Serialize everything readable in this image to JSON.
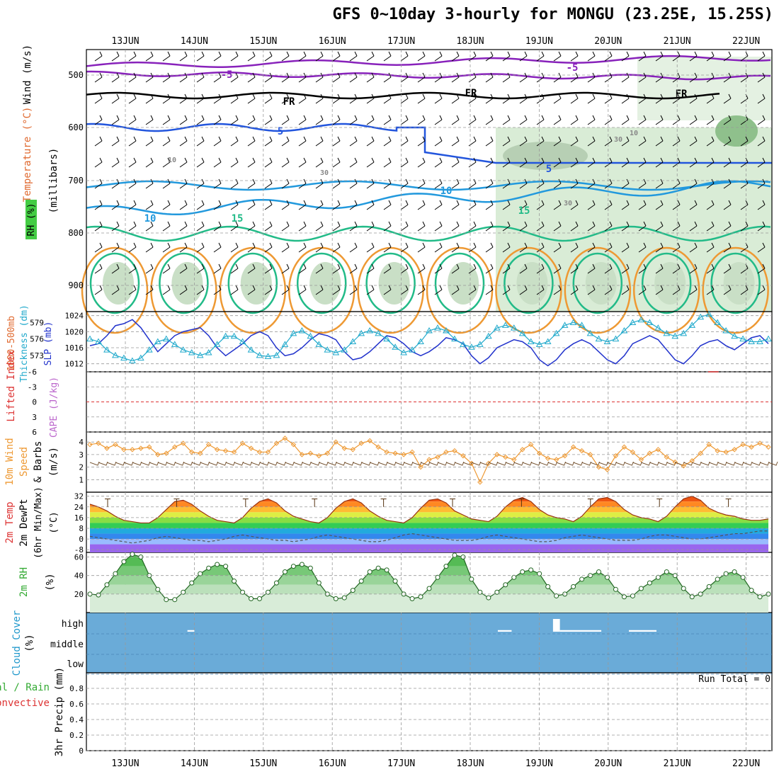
{
  "title": "GFS 0~10day 3-hourly for MONGU (23.25E, 15.25S)",
  "date_labels": [
    "13JUN",
    "14JUN",
    "15JUN",
    "16JUN",
    "17JUN",
    "18JUN",
    "19JUN",
    "20JUN",
    "21JUN",
    "22JUN"
  ],
  "run_total": "Run Total = 0",
  "colors": {
    "grid": "#999999",
    "wind_barb": "#000000",
    "temp_isotherm": "#2255dd",
    "freezing": "#000000",
    "rh_shading": "#9ccc9c",
    "slp": "#2233cc",
    "thickness": "#22aacc",
    "lifted_index": "#dd3333",
    "wind_speed": "#ee9933",
    "cloud": "#6aabd8",
    "rh2m": "#33aa33"
  },
  "panels": {
    "upper": {
      "labels": [
        "Wind (m/s)",
        "Temperature (°C)",
        "RH (%)"
      ],
      "axis_title": "(millibars)",
      "ticks": [
        "500",
        "600",
        "700",
        "800",
        "900"
      ],
      "contour_labels": [
        "-5",
        "-5",
        "FR",
        "FR",
        "FR",
        "5",
        "5",
        "10",
        "10",
        "15",
        "15",
        "10",
        "30",
        "30",
        "10",
        "30"
      ]
    },
    "slp": {
      "labels": [
        "1000-500mb",
        "Thickness (dm)",
        "SLP (mb)"
      ],
      "left_ticks": [
        "579",
        "576",
        "573"
      ],
      "right_ticks": [
        "1024",
        "1020",
        "1016",
        "1012"
      ]
    },
    "cape": {
      "labels": [
        "Lifted Index",
        "CAPE (J/kg)"
      ],
      "ticks": [
        "-6",
        "-3",
        "0",
        "3",
        "6"
      ]
    },
    "wind10m": {
      "labels": [
        "10m Wind",
        "Speed",
        "& Barbs",
        "(m/s)"
      ],
      "ticks": [
        "4",
        "3",
        "2",
        "1"
      ]
    },
    "temp2m": {
      "labels": [
        "2m Temp",
        "2m DewPt",
        "(6hr Min/Max)",
        "(°C)"
      ],
      "ticks": [
        "32",
        "24",
        "16",
        "8",
        "0",
        "-8"
      ]
    },
    "rh2m": {
      "labels": [
        "2m RH",
        "(%)"
      ],
      "ticks": [
        "60",
        "40",
        "20"
      ]
    },
    "cloud": {
      "labels": [
        "Cloud Cover",
        "(%)"
      ],
      "ticks": [
        "high",
        "middle",
        "low"
      ]
    },
    "precip": {
      "labels": [
        "Total / Rain",
        "Convective",
        "3hr Precip (mm)"
      ],
      "ticks": [
        "0.8",
        "0.6",
        "0.4",
        "0.2",
        "0"
      ]
    }
  },
  "chart_data": [
    {
      "type": "line",
      "panel": "slp",
      "x_unit": "days from 12JUN 12UTC (3-hourly)",
      "series": [
        {
          "name": "SLP (mb)",
          "axis": "right",
          "values": [
            1016.5,
            1017,
            1019,
            1021.5,
            1022,
            1023,
            1021,
            1018,
            1015,
            1017,
            1019,
            1020,
            1020.5,
            1021,
            1019,
            1016,
            1014,
            1015.5,
            1017,
            1019,
            1020,
            1019,
            1016,
            1014,
            1014.5,
            1016,
            1018,
            1019.5,
            1019,
            1018,
            1015,
            1013,
            1013.5,
            1015,
            1017,
            1019,
            1018.5,
            1017,
            1015,
            1014,
            1015,
            1016.5,
            1018.5,
            1018,
            1017,
            1014,
            1012,
            1013.5,
            1016,
            1017,
            1018,
            1017.5,
            1016,
            1013,
            1011.5,
            1013,
            1015.5,
            1017,
            1018,
            1017,
            1015,
            1013,
            1012,
            1014,
            1017,
            1018,
            1019,
            1018,
            1015.5,
            1013,
            1012,
            1014,
            1016.5,
            1017.5,
            1018,
            1016.5,
            1015.5,
            1017,
            1018.5,
            1019,
            1017
          ]
        },
        {
          "name": "1000-500mb Thickness (dm)",
          "axis": "left",
          "values": [
            576,
            575.5,
            574,
            573,
            572.5,
            572,
            572.5,
            574,
            575.5,
            576,
            575,
            574,
            573.5,
            573,
            573.5,
            575,
            576.5,
            576.5,
            575.5,
            574,
            573,
            572.8,
            573,
            575,
            577,
            577.5,
            576.5,
            575,
            574,
            573.5,
            574,
            575.5,
            577,
            577.5,
            577,
            576,
            574.5,
            573.5,
            574,
            575.5,
            577.5,
            578,
            577.5,
            576,
            575,
            574.5,
            575,
            576.5,
            578,
            578.5,
            578,
            577,
            575.5,
            575,
            575.5,
            577,
            578.5,
            579,
            578.5,
            577,
            576,
            575.5,
            576,
            577.5,
            579,
            579.5,
            579,
            578,
            577,
            576.5,
            577,
            578.5,
            580,
            580.5,
            579,
            577.5,
            576.5,
            576,
            575.5,
            575.5,
            576
          ]
        }
      ]
    },
    {
      "type": "line",
      "panel": "wind10m",
      "series": [
        {
          "name": "10m Wind Speed (m/s)",
          "values": [
            3.8,
            3.9,
            3.5,
            3.8,
            3.4,
            3.4,
            3.5,
            3.6,
            3.0,
            3.1,
            3.6,
            3.9,
            3.2,
            3.1,
            3.8,
            3.4,
            3.3,
            3.2,
            3.9,
            3.5,
            3.2,
            3.2,
            3.9,
            4.3,
            3.8,
            3.0,
            3.1,
            2.9,
            3.1,
            4.0,
            3.5,
            3.4,
            3.9,
            4.1,
            3.6,
            3.2,
            3.1,
            3.0,
            3.2,
            2.0,
            2.6,
            2.8,
            3.2,
            3.3,
            2.9,
            2.3,
            0.8,
            2.3,
            3.0,
            2.8,
            2.6,
            3.4,
            3.8,
            3.1,
            2.7,
            2.6,
            2.9,
            3.6,
            3.3,
            3.0,
            2.0,
            1.8,
            2.9,
            3.6,
            3.2,
            2.6,
            3.1,
            3.4,
            2.8,
            2.4,
            2.1,
            2.5,
            3.1,
            3.8,
            3.3,
            3.2,
            3.4,
            3.8,
            3.6,
            3.9,
            3.6
          ]
        }
      ]
    },
    {
      "type": "area",
      "panel": "temp2m",
      "series": [
        {
          "name": "2m Temp (°C)",
          "values": [
            26,
            24,
            21,
            17,
            14,
            13,
            12,
            12,
            16,
            22,
            28,
            29,
            26,
            21,
            17,
            14,
            13,
            12,
            16,
            23,
            28,
            30,
            27,
            21,
            17,
            15,
            13,
            12,
            16,
            23,
            28,
            30,
            27,
            21,
            17,
            14,
            13,
            12,
            16,
            23,
            29,
            30,
            27,
            21,
            18,
            15,
            14,
            13,
            17,
            24,
            29,
            31,
            28,
            22,
            18,
            16,
            15,
            13,
            17,
            24,
            30,
            31,
            28,
            22,
            18,
            16,
            15,
            13,
            17,
            24,
            30,
            32,
            29,
            23,
            20,
            18,
            17,
            15,
            14,
            14,
            15
          ]
        },
        {
          "name": "2m DewPt (°C)",
          "values": [
            2,
            1,
            0,
            -1,
            -2,
            -3,
            -2,
            -1,
            1,
            2,
            1,
            0,
            -1,
            -1,
            -2,
            -1,
            0,
            2,
            3,
            2,
            1,
            0,
            -1,
            -1,
            -2,
            -1,
            0,
            2,
            3,
            2,
            1,
            0,
            -1,
            -2,
            -2,
            -1,
            1,
            3,
            4,
            3,
            2,
            1,
            0,
            -1,
            -1,
            -1,
            0,
            2,
            3,
            2,
            1,
            0,
            -1,
            -2,
            -2,
            -1,
            1,
            2,
            3,
            2,
            1,
            0,
            -1,
            -1,
            -1,
            0,
            2,
            3,
            3,
            2,
            1,
            0,
            0,
            1,
            2,
            3,
            4,
            4,
            5,
            6,
            6
          ]
        }
      ]
    },
    {
      "type": "area",
      "panel": "rh2m",
      "series": [
        {
          "name": "2m RH (%)",
          "values": [
            20,
            19,
            30,
            42,
            55,
            63,
            60,
            40,
            25,
            14,
            14,
            22,
            32,
            42,
            48,
            52,
            50,
            34,
            22,
            15,
            15,
            22,
            32,
            44,
            50,
            52,
            48,
            32,
            20,
            15,
            16,
            24,
            34,
            44,
            48,
            46,
            34,
            20,
            15,
            17,
            26,
            38,
            50,
            62,
            60,
            36,
            22,
            16,
            22,
            30,
            38,
            44,
            46,
            42,
            28,
            18,
            20,
            28,
            36,
            40,
            44,
            38,
            25,
            17,
            18,
            26,
            32,
            38,
            44,
            40,
            26,
            17,
            20,
            28,
            36,
            42,
            44,
            38,
            24,
            17,
            20
          ]
        }
      ]
    },
    {
      "type": "bar",
      "panel": "cloud",
      "series": [
        {
          "name": "high cloud (%)",
          "segments": [
            [
              0.9,
              1.0,
              5
            ],
            [
              5.4,
              5.6,
              5
            ],
            [
              6.2,
              6.3,
              40
            ],
            [
              6.3,
              6.9,
              5
            ],
            [
              7.3,
              7.7,
              5
            ]
          ]
        },
        {
          "name": "middle cloud (%)",
          "segments": []
        },
        {
          "name": "low cloud (%)",
          "segments": []
        }
      ]
    },
    {
      "type": "line",
      "panel": "cape",
      "series": [
        {
          "name": "Lifted Index",
          "segments": [
            [
              8.45,
              8.6,
              -6
            ]
          ]
        }
      ]
    },
    {
      "type": "bar",
      "panel": "precip",
      "series": [
        {
          "name": "3hr Precip (mm)",
          "values": []
        }
      ],
      "ylim": [
        0,
        1
      ]
    }
  ]
}
